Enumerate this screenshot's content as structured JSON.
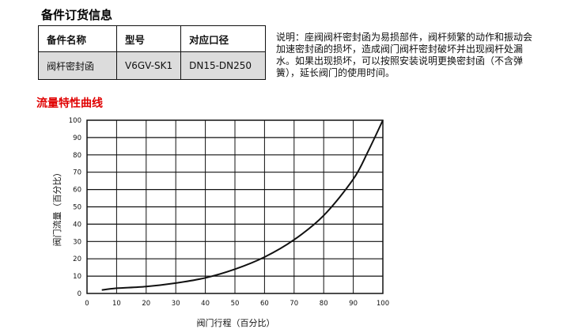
{
  "parts_section": {
    "title": "备件订货信息",
    "table": {
      "headers": [
        "备件名称",
        "型号",
        "对应口径"
      ],
      "rows": [
        [
          "阀杆密封函",
          "V6GV-SK1",
          "DN15-DN250"
        ]
      ]
    },
    "note": "说明：座阀阀杆密封函为易损部件，阀杆频繁的动作和振动会加速密封函的损坏，造成阀门阀杆密封破坏并出现阀杆处漏水。如果出现损坏，可以按照安装说明更换密封函（不含弹簧），延长阀门的使用时间。"
  },
  "chart_section": {
    "title": "流量特性曲线"
  },
  "colors": {
    "title_red": "#e00000",
    "table_row_bg": "#dcdcdc",
    "grid": "#111111"
  },
  "chart_data": {
    "type": "line",
    "title": "流量特性曲线",
    "xlabel": "阀门行程（百分比）",
    "ylabel": "阀门流量（百分比）",
    "xlim": [
      0,
      100
    ],
    "ylim": [
      0,
      100
    ],
    "xticks": [
      0,
      10,
      20,
      30,
      40,
      50,
      60,
      70,
      80,
      90,
      100
    ],
    "yticks": [
      0,
      10,
      20,
      30,
      40,
      50,
      60,
      70,
      80,
      90,
      100
    ],
    "grid": true,
    "legend": "none",
    "series": [
      {
        "x": [
          5,
          10,
          20,
          30,
          40,
          50,
          60,
          70,
          80,
          90,
          95,
          100
        ],
        "y": [
          2,
          3,
          4,
          6,
          9,
          14,
          21,
          31,
          45,
          66,
          82,
          100
        ]
      }
    ]
  }
}
